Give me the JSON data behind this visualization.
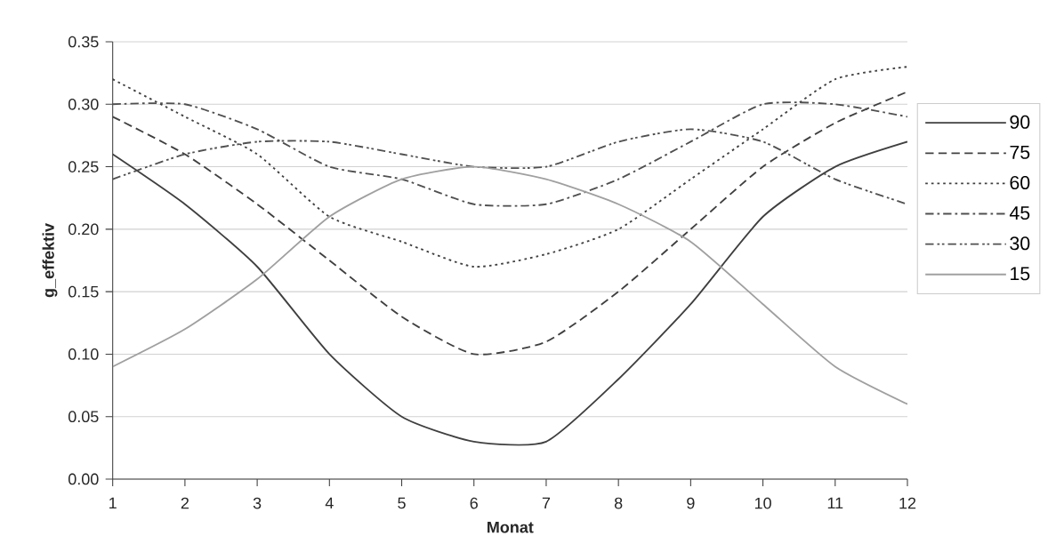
{
  "chart_data": {
    "type": "line",
    "xlabel": "Monat",
    "ylabel": "g_effektiv",
    "x": [
      1,
      2,
      3,
      4,
      5,
      6,
      7,
      8,
      9,
      10,
      11,
      12
    ],
    "xlim": [
      1,
      12
    ],
    "xticks": [
      1,
      2,
      3,
      4,
      5,
      6,
      7,
      8,
      9,
      10,
      11,
      12
    ],
    "ylim": [
      0,
      0.35
    ],
    "yticks": [
      {
        "value": 0,
        "label": "0.00"
      },
      {
        "value": 0.05,
        "label": "0.05"
      },
      {
        "value": 0.1,
        "label": "0.10"
      },
      {
        "value": 0.15,
        "label": "0.15"
      },
      {
        "value": 0.2,
        "label": "0.20"
      },
      {
        "value": 0.25,
        "label": "0.25"
      },
      {
        "value": 0.3,
        "label": "0.30"
      },
      {
        "value": 0.35,
        "label": "0.35"
      }
    ],
    "grid": "y",
    "legend": "right",
    "series": [
      {
        "name": "90",
        "color": "#404040",
        "line_style": "solid",
        "values": [
          0.26,
          0.22,
          0.17,
          0.1,
          0.05,
          0.03,
          0.03,
          0.08,
          0.14,
          0.21,
          0.25,
          0.27
        ]
      },
      {
        "name": "75",
        "color": "#404040",
        "line_style": "dashed",
        "values": [
          0.29,
          0.26,
          0.22,
          0.175,
          0.13,
          0.1,
          0.11,
          0.15,
          0.2,
          0.25,
          0.285,
          0.31
        ]
      },
      {
        "name": "60",
        "color": "#404040",
        "line_style": "dotted",
        "values": [
          0.32,
          0.29,
          0.26,
          0.21,
          0.19,
          0.17,
          0.18,
          0.2,
          0.24,
          0.28,
          0.32,
          0.33
        ]
      },
      {
        "name": "45",
        "color": "#505050",
        "line_style": "dashdot",
        "values": [
          0.3,
          0.3,
          0.28,
          0.25,
          0.24,
          0.22,
          0.22,
          0.24,
          0.27,
          0.3,
          0.3,
          0.29
        ]
      },
      {
        "name": "30",
        "color": "#505050",
        "line_style": "dashdotdot",
        "values": [
          0.24,
          0.26,
          0.27,
          0.27,
          0.26,
          0.25,
          0.25,
          0.27,
          0.28,
          0.27,
          0.24,
          0.22
        ]
      },
      {
        "name": "15",
        "color": "#a0a0a0",
        "line_style": "solid",
        "values": [
          0.09,
          0.12,
          0.16,
          0.21,
          0.24,
          0.25,
          0.24,
          0.22,
          0.19,
          0.14,
          0.09,
          0.06
        ]
      }
    ]
  }
}
